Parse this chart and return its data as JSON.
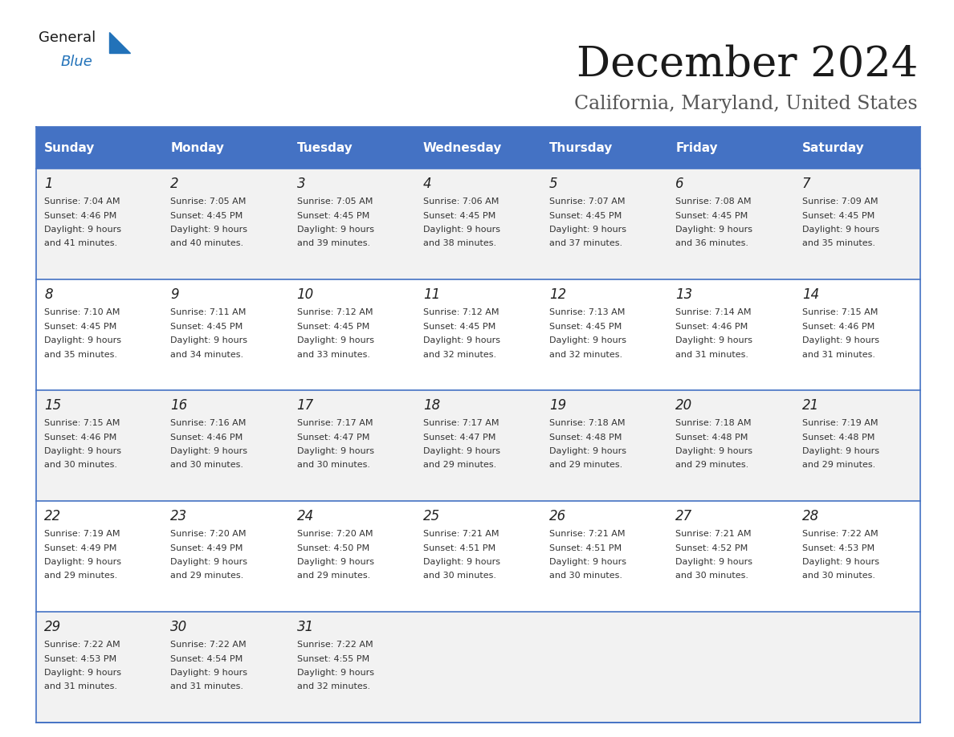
{
  "title": "December 2024",
  "subtitle": "California, Maryland, United States",
  "header_bg": "#4472C4",
  "header_text_color": "#FFFFFF",
  "day_names": [
    "Sunday",
    "Monday",
    "Tuesday",
    "Wednesday",
    "Thursday",
    "Friday",
    "Saturday"
  ],
  "row_bg_odd": "#F2F2F2",
  "row_bg_even": "#FFFFFF",
  "cell_border_color": "#4472C4",
  "calendar_data": [
    [
      {
        "day": "1",
        "sunrise": "7:04 AM",
        "sunset": "4:46 PM",
        "daylight_l1": "Daylight: 9 hours",
        "daylight_l2": "and 41 minutes."
      },
      {
        "day": "2",
        "sunrise": "7:05 AM",
        "sunset": "4:45 PM",
        "daylight_l1": "Daylight: 9 hours",
        "daylight_l2": "and 40 minutes."
      },
      {
        "day": "3",
        "sunrise": "7:05 AM",
        "sunset": "4:45 PM",
        "daylight_l1": "Daylight: 9 hours",
        "daylight_l2": "and 39 minutes."
      },
      {
        "day": "4",
        "sunrise": "7:06 AM",
        "sunset": "4:45 PM",
        "daylight_l1": "Daylight: 9 hours",
        "daylight_l2": "and 38 minutes."
      },
      {
        "day": "5",
        "sunrise": "7:07 AM",
        "sunset": "4:45 PM",
        "daylight_l1": "Daylight: 9 hours",
        "daylight_l2": "and 37 minutes."
      },
      {
        "day": "6",
        "sunrise": "7:08 AM",
        "sunset": "4:45 PM",
        "daylight_l1": "Daylight: 9 hours",
        "daylight_l2": "and 36 minutes."
      },
      {
        "day": "7",
        "sunrise": "7:09 AM",
        "sunset": "4:45 PM",
        "daylight_l1": "Daylight: 9 hours",
        "daylight_l2": "and 35 minutes."
      }
    ],
    [
      {
        "day": "8",
        "sunrise": "7:10 AM",
        "sunset": "4:45 PM",
        "daylight_l1": "Daylight: 9 hours",
        "daylight_l2": "and 35 minutes."
      },
      {
        "day": "9",
        "sunrise": "7:11 AM",
        "sunset": "4:45 PM",
        "daylight_l1": "Daylight: 9 hours",
        "daylight_l2": "and 34 minutes."
      },
      {
        "day": "10",
        "sunrise": "7:12 AM",
        "sunset": "4:45 PM",
        "daylight_l1": "Daylight: 9 hours",
        "daylight_l2": "and 33 minutes."
      },
      {
        "day": "11",
        "sunrise": "7:12 AM",
        "sunset": "4:45 PM",
        "daylight_l1": "Daylight: 9 hours",
        "daylight_l2": "and 32 minutes."
      },
      {
        "day": "12",
        "sunrise": "7:13 AM",
        "sunset": "4:45 PM",
        "daylight_l1": "Daylight: 9 hours",
        "daylight_l2": "and 32 minutes."
      },
      {
        "day": "13",
        "sunrise": "7:14 AM",
        "sunset": "4:46 PM",
        "daylight_l1": "Daylight: 9 hours",
        "daylight_l2": "and 31 minutes."
      },
      {
        "day": "14",
        "sunrise": "7:15 AM",
        "sunset": "4:46 PM",
        "daylight_l1": "Daylight: 9 hours",
        "daylight_l2": "and 31 minutes."
      }
    ],
    [
      {
        "day": "15",
        "sunrise": "7:15 AM",
        "sunset": "4:46 PM",
        "daylight_l1": "Daylight: 9 hours",
        "daylight_l2": "and 30 minutes."
      },
      {
        "day": "16",
        "sunrise": "7:16 AM",
        "sunset": "4:46 PM",
        "daylight_l1": "Daylight: 9 hours",
        "daylight_l2": "and 30 minutes."
      },
      {
        "day": "17",
        "sunrise": "7:17 AM",
        "sunset": "4:47 PM",
        "daylight_l1": "Daylight: 9 hours",
        "daylight_l2": "and 30 minutes."
      },
      {
        "day": "18",
        "sunrise": "7:17 AM",
        "sunset": "4:47 PM",
        "daylight_l1": "Daylight: 9 hours",
        "daylight_l2": "and 29 minutes."
      },
      {
        "day": "19",
        "sunrise": "7:18 AM",
        "sunset": "4:48 PM",
        "daylight_l1": "Daylight: 9 hours",
        "daylight_l2": "and 29 minutes."
      },
      {
        "day": "20",
        "sunrise": "7:18 AM",
        "sunset": "4:48 PM",
        "daylight_l1": "Daylight: 9 hours",
        "daylight_l2": "and 29 minutes."
      },
      {
        "day": "21",
        "sunrise": "7:19 AM",
        "sunset": "4:48 PM",
        "daylight_l1": "Daylight: 9 hours",
        "daylight_l2": "and 29 minutes."
      }
    ],
    [
      {
        "day": "22",
        "sunrise": "7:19 AM",
        "sunset": "4:49 PM",
        "daylight_l1": "Daylight: 9 hours",
        "daylight_l2": "and 29 minutes."
      },
      {
        "day": "23",
        "sunrise": "7:20 AM",
        "sunset": "4:49 PM",
        "daylight_l1": "Daylight: 9 hours",
        "daylight_l2": "and 29 minutes."
      },
      {
        "day": "24",
        "sunrise": "7:20 AM",
        "sunset": "4:50 PM",
        "daylight_l1": "Daylight: 9 hours",
        "daylight_l2": "and 29 minutes."
      },
      {
        "day": "25",
        "sunrise": "7:21 AM",
        "sunset": "4:51 PM",
        "daylight_l1": "Daylight: 9 hours",
        "daylight_l2": "and 30 minutes."
      },
      {
        "day": "26",
        "sunrise": "7:21 AM",
        "sunset": "4:51 PM",
        "daylight_l1": "Daylight: 9 hours",
        "daylight_l2": "and 30 minutes."
      },
      {
        "day": "27",
        "sunrise": "7:21 AM",
        "sunset": "4:52 PM",
        "daylight_l1": "Daylight: 9 hours",
        "daylight_l2": "and 30 minutes."
      },
      {
        "day": "28",
        "sunrise": "7:22 AM",
        "sunset": "4:53 PM",
        "daylight_l1": "Daylight: 9 hours",
        "daylight_l2": "and 30 minutes."
      }
    ],
    [
      {
        "day": "29",
        "sunrise": "7:22 AM",
        "sunset": "4:53 PM",
        "daylight_l1": "Daylight: 9 hours",
        "daylight_l2": "and 31 minutes."
      },
      {
        "day": "30",
        "sunrise": "7:22 AM",
        "sunset": "4:54 PM",
        "daylight_l1": "Daylight: 9 hours",
        "daylight_l2": "and 31 minutes."
      },
      {
        "day": "31",
        "sunrise": "7:22 AM",
        "sunset": "4:55 PM",
        "daylight_l1": "Daylight: 9 hours",
        "daylight_l2": "and 32 minutes."
      },
      null,
      null,
      null,
      null
    ]
  ]
}
